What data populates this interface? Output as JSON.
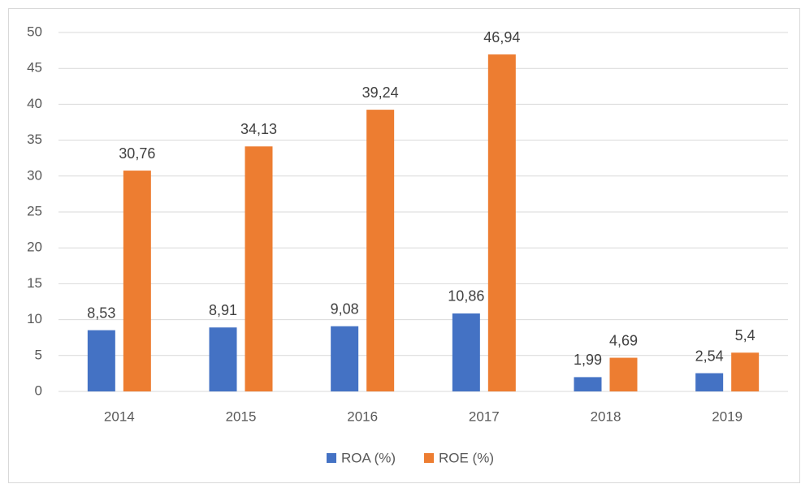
{
  "chart_data": {
    "type": "bar",
    "categories": [
      "2014",
      "2015",
      "2016",
      "2017",
      "2018",
      "2019"
    ],
    "series": [
      {
        "name": "ROA (%)",
        "color": "#4472c4",
        "values": [
          8.53,
          8.91,
          9.08,
          10.86,
          1.99,
          2.54
        ],
        "value_labels": [
          "8,53",
          "8,91",
          "9,08",
          "10,86",
          "1,99",
          "2,54"
        ]
      },
      {
        "name": "ROE (%)",
        "color": "#ed7d31",
        "values": [
          30.76,
          34.13,
          39.24,
          46.94,
          4.69,
          5.4
        ],
        "value_labels": [
          "30,76",
          "34,13",
          "39,24",
          "46,94",
          "4,69",
          "5,4"
        ]
      }
    ],
    "ylim": [
      0,
      50
    ],
    "yticks": [
      0,
      5,
      10,
      15,
      20,
      25,
      30,
      35,
      40,
      45,
      50
    ],
    "grid": true,
    "legend": "bottom"
  }
}
